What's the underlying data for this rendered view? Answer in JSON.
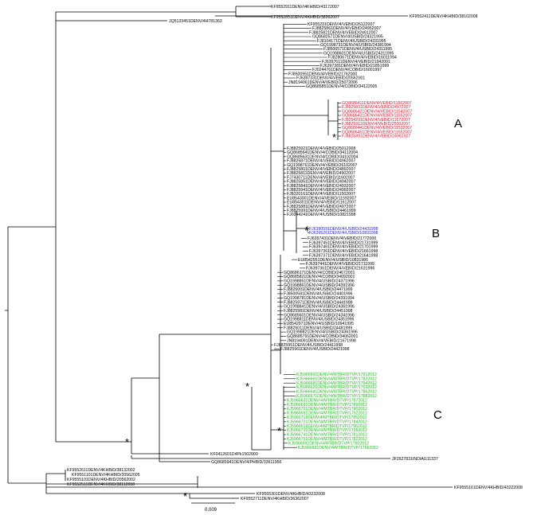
{
  "colors": {
    "line": "#000000",
    "cluster_a": "#e0102a",
    "cluster_b": "#2222dd",
    "cluster_c": "#22bb22",
    "text": "#000000"
  },
  "top_labels": [
    {
      "text": "KF9552911DENV/4KHBID/43172007"
    },
    {
      "text": "KF9552851DENV/4KHBID/38362007"
    },
    {
      "text": "KF9552411DENV/4KHBID/38102008"
    },
    {
      "text": "JQ5133451DENV/4H781363"
    }
  ],
  "upper_group": [
    "KF955231DENV/4/VEBID/26122007",
    "FJ8825861DENV/4/VEBID/24952007",
    "FJ8825821DENV/4/VEBID/24912007",
    "GQ8682571DENV/4/USBID/24321995",
    "FJ8104171DENV/4/USBID/24331995",
    "GQ1998731DENV/4/USBID/24381994",
    "FJ8500571DENV/4/USBID/24311995",
    "GQ1998601DENV/4/USBID/24311995",
    "FJ8280671DENV/4/VEBID/16011994",
    "FJ6397611DENV/4/VEBID/21942001",
    "FJ6397381DENV/4/VEBID/21851999",
    "FJ0244761DENV/4/COBID/16001997",
    "FJ8500951DENV/4/VEBID/21762000",
    "FJ6397331DENV/4/VEBID/20562001",
    "JN8194061DENV/4/VEBID/25072006",
    "GQ8685851DENV/4/COBID/34122005"
  ],
  "cluster_a": [
    "GQ8686411DENV/4/VEBID/11562007",
    "FJ8825831DENV/4/VEBID/24972007",
    "GQ8686421DENV/4/VEBID/11542007",
    "GQ8686431DENV/4/VEBID/11552007",
    "FJ8254291DENV/4/VEBID/11572007",
    "FJ8825911DENV/4/VEBID/25002007",
    "GQ8686441DENV/4/VEBID/11532007",
    "GQ8686451DENV/4/VEBID/11552007",
    "FJ8825891DENV/4/VEBID/24962007"
  ],
  "middle_group": [
    "FJ8825921DENV/4/VEBID/25012008",
    "GQ8685641DENV/4/COBID/34112004",
    "GQ8685631DENV/4/COBID/34102004",
    "FJ8825871DENV/4/VEBID/24962007",
    "GQ1998761DENV/4/VEBID/26102007",
    "FJ8825801DENV/4/VEBID/24892007",
    "FJ8825811DENV/4/VEBID/24902007",
    "FJ7430711DENV/4/VEBID/11602007",
    "FJ8825851DENV/4/VEBID/24942007",
    "FJ8825841DENV/4/VEBID/24932007",
    "FJ8825941DENV/4/VEBID/24992007",
    "FJ8320161DENV/4/VEBID/11502007",
    "EU8543001DENV/4/VEBID/11592007",
    "EU8543011DENV/4/VEBID/11612007",
    "FJ8825881DENV/4/VEBID/24972007",
    "FJ8825991DENV/4/USBID/24461999",
    "FJ0244241DENV/4/USBID/10821998"
  ],
  "cluster_b": [
    "FJ6390591DENV/4/USBID/24431998",
    "FJ6395261DENV/4/USBID/10831998"
  ],
  "lower_group": [
    "FJ6397431DENV/4/VEBID/21772000",
    "FJ6397451DENV/4/VEBID/21731999",
    "FJ6397461DENV/4/VEBID/21701999",
    "FJ6397361DENV/4/VEBID/21661998",
    "FJ6397371DENV/4/VEBID/21641998",
    "EU8542951DENV/4/USBID/10831986",
    "FJ6397441DENV/4/VEBID/21711999",
    "FJ6397361DENV/4/VEBID/21631996",
    "GQ8686171DENV/4/COBID/24672001",
    "GQ8685821DENV/4/COBID/34092001",
    "GQ1998851DENV/4/USBID/24371996",
    "GQ1998861DENV/4/USBID/24391996",
    "FJ8826001DENV/4/USBID/24471999",
    "FJ8500581DENV/4/USBID/24401996",
    "GQ1998781DENV/4/USBID/24391994",
    "FJ8825971DENV/4/USBID/24441998",
    "GQ1998841DENV/4/USBID/24361996",
    "FJ8825981DENV/4/USBID/24451998",
    "GQ8685601DENV/4/USBID/24341996",
    "GQ1998811DENV/4/USBID/24351996",
    "EU8542971DENV/4/USBID/10941995",
    "FJ8826011DENV/4/USBID/24481999",
    "GQ1998821DENV/4/USBID/24361996",
    "GQ8685791DENV/4/COBID/34062001",
    "JN8194091DENV/4/VEBID/21671998",
    "FJ8825951DENV/4/USBID/24411998",
    "FJ8825961DENV/4/USBID/24421998"
  ],
  "cluster_c": [
    "KJ5966601DENV/4/MTBR/DTVP/17912012",
    "KJ5966661DENV/4/MTBR/DTVP/17832012",
    "KJ5966681DENV/4/MTBR/DTVP/17942012",
    "KJ5966621DENV/4/MTBR/DTVP/17932012",
    "KJ5966641DENV/4/MTBR/DTVP/17862012",
    "KJ5966671DENV/4/MTBR/DTVP/17882012",
    "KJ5966631DENV/4/MTBR/DTVP/17872012",
    "KJ5966691DENV/4/MTBR/DTVP/17892012",
    "KJ5966701DENV/4/MTBR/DTVP/17902012",
    "KJ5966651DENV/4/MTBR/DTVP/17922012",
    "KJ5966711DENV/4/MTBR/DTVP/17852012",
    "KJ5966721DENV/4/MTBR/DTVP/17842012",
    "KJ5966611DENV/4/MTBR/DTVP/17962012",
    "KJ5966731DENV/4/MTBR/DTVP/17952012",
    "KJ5966741DENV/4/MTBR/DTVP/17812012",
    "KJ5966751DENV/4/MTBR/DTVP/17822012",
    "KJ5966591DENV/4/MTBR/DTVP/17802012",
    "KJ5966681DENV/4/MTBR/DTVP/17662012"
  ],
  "outer_labels": [
    {
      "text": "GQ8685941DENV/4/PHBID/33611956"
    },
    {
      "text": "KF0412601D4Pk1502009"
    },
    {
      "text": "JF2627831INDIAG11337"
    }
  ],
  "bottom_labels": [
    {
      "text": "KF9552611DENV/4KHBID/38132002"
    },
    {
      "text": "KF9551101DENV/4KHBID/20562005"
    },
    {
      "text": "KF9555101DENV/4KHBID/20562002"
    },
    {
      "text": "KF9552511DENV/4KHBID/38112008"
    },
    {
      "text": "KF9555161DENV/4KHBID/43222008"
    },
    {
      "text": "KF9555301DENV/4KHBID/43232008"
    },
    {
      "text": "KF9552711DENV/4KHBID/36362007"
    }
  ],
  "cluster_labels": {
    "a": "A",
    "b": "B",
    "c": "C"
  },
  "asterisk": "*",
  "scale_label": "0.009"
}
